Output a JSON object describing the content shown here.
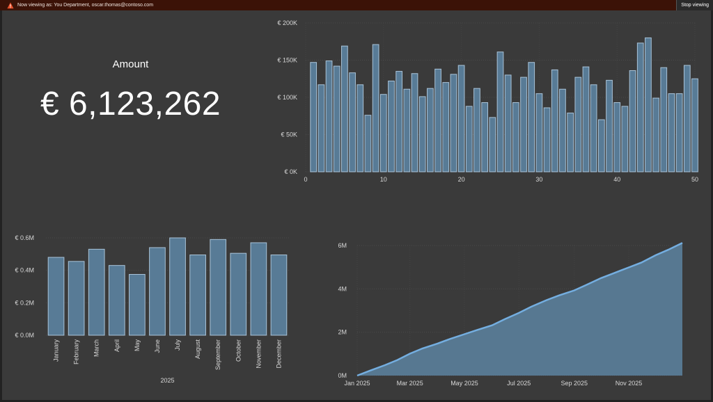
{
  "banner": {
    "message": "Now viewing as: You Department, oscar.thomas@contoso.com",
    "stop_label": "Stop viewing",
    "icon": "warning-icon"
  },
  "kpi": {
    "label": "Amount",
    "value": "€ 6,123,262"
  },
  "colors": {
    "background": "#3a3a3a",
    "bar_fill": "#587b96",
    "bar_stroke": "#a9c3d8",
    "line": "#74aee0",
    "area": "#587b96",
    "banner": "#3b1207"
  },
  "chart_data": [
    {
      "type": "bar",
      "x": [
        1,
        2,
        3,
        4,
        5,
        6,
        7,
        8,
        9,
        10,
        11,
        12,
        13,
        14,
        15,
        16,
        17,
        18,
        19,
        20,
        21,
        22,
        23,
        24,
        25,
        26,
        27,
        28,
        29,
        30,
        31,
        32,
        33,
        34,
        35,
        36,
        37,
        38,
        39,
        40,
        41,
        42,
        43,
        44,
        45,
        46,
        47,
        48,
        49,
        50
      ],
      "values": [
        147000,
        117000,
        149000,
        142000,
        169000,
        133000,
        117000,
        76000,
        171000,
        104000,
        122000,
        135000,
        111000,
        132000,
        101000,
        112000,
        138000,
        120000,
        131000,
        143000,
        88000,
        112000,
        93000,
        73000,
        161000,
        130000,
        93000,
        127000,
        147000,
        105000,
        86000,
        137000,
        111000,
        79000,
        127000,
        141000,
        117000,
        70000,
        123000,
        93000,
        88000,
        136000,
        173000,
        180000,
        99000,
        140000,
        105000,
        105000,
        143000,
        125000
      ],
      "xlim": [
        0,
        50
      ],
      "ylim": [
        0,
        200000
      ],
      "xticks": [
        "0",
        "10",
        "20",
        "30",
        "40",
        "50"
      ],
      "yticks": [
        "€ 0K",
        "€ 50K",
        "€ 100K",
        "€ 150K",
        "€ 200K"
      ],
      "grid": true
    },
    {
      "type": "bar",
      "categories": [
        "January",
        "February",
        "March",
        "April",
        "May",
        "June",
        "July",
        "August",
        "September",
        "October",
        "November",
        "December"
      ],
      "values": [
        480000,
        455000,
        530000,
        430000,
        375000,
        540000,
        600000,
        495000,
        590000,
        505000,
        570000,
        495000
      ],
      "xlabel": "2025",
      "ylim": [
        0,
        600000
      ],
      "yticks": [
        "€ 0.0M",
        "€ 0.2M",
        "€ 0.4M",
        "€ 0.6M"
      ],
      "grid": true
    },
    {
      "type": "area",
      "x": [
        "2025-01-01",
        "2025-01-15",
        "2025-02-01",
        "2025-02-15",
        "2025-03-01",
        "2025-03-15",
        "2025-04-01",
        "2025-04-15",
        "2025-05-01",
        "2025-05-15",
        "2025-06-01",
        "2025-06-15",
        "2025-07-01",
        "2025-07-15",
        "2025-08-01",
        "2025-08-15",
        "2025-09-01",
        "2025-09-15",
        "2025-10-01",
        "2025-10-15",
        "2025-11-01",
        "2025-11-15",
        "2025-12-01",
        "2025-12-15",
        "2025-12-31"
      ],
      "values": [
        0,
        220000,
        480000,
        720000,
        1010000,
        1250000,
        1480000,
        1690000,
        1910000,
        2100000,
        2320000,
        2600000,
        2890000,
        3180000,
        3480000,
        3700000,
        3930000,
        4190000,
        4500000,
        4720000,
        4990000,
        5210000,
        5550000,
        5800000,
        6123262
      ],
      "ylim": [
        0,
        6000000
      ],
      "yticks": [
        "0M",
        "2M",
        "4M",
        "6M"
      ],
      "xticks": [
        "Jan 2025",
        "Mar 2025",
        "May 2025",
        "Jul 2025",
        "Sep 2025",
        "Nov 2025"
      ],
      "grid": true
    }
  ]
}
